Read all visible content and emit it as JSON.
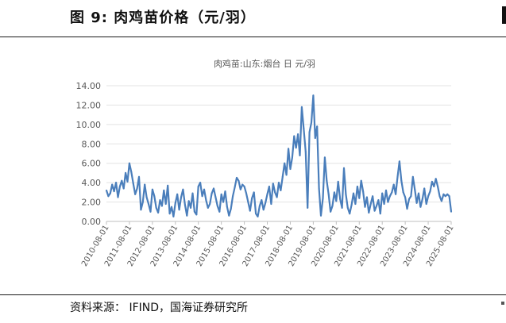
{
  "figure": {
    "title": "图 9:  肉鸡苗价格（元/羽）",
    "source": "资料来源：  IFIND，国海证券研究所"
  },
  "chart_data": {
    "type": "line",
    "title": "肉鸡苗:山东:烟台  日  元/羽",
    "ylim": [
      0,
      14
    ],
    "yticks": [
      "0.00",
      "2.00",
      "4.00",
      "6.00",
      "8.00",
      "10.00",
      "12.00",
      "14.00"
    ],
    "xticks": [
      "2010-08-01",
      "2011-08-01",
      "2012-08-01",
      "2013-08-01",
      "2014-08-01",
      "2015-08-01",
      "2016-08-01",
      "2017-08-01",
      "2018-08-01",
      "2019-08-01",
      "2020-08-01",
      "2021-08-01",
      "2022-08-01",
      "2023-08-01",
      "2024-08-01",
      "2025-08-01"
    ],
    "grid": true,
    "legend": "none",
    "series": [
      {
        "color": "#4a7ebb",
        "x": [
          "2010-08",
          "2010-09",
          "2010-10",
          "2010-11",
          "2010-12",
          "2011-01",
          "2011-02",
          "2011-03",
          "2011-04",
          "2011-05",
          "2011-06",
          "2011-07",
          "2011-08",
          "2011-09",
          "2011-10",
          "2011-11",
          "2011-12",
          "2012-01",
          "2012-02",
          "2012-03",
          "2012-04",
          "2012-05",
          "2012-06",
          "2012-07",
          "2012-08",
          "2012-09",
          "2012-10",
          "2012-11",
          "2012-12",
          "2013-01",
          "2013-02",
          "2013-03",
          "2013-04",
          "2013-05",
          "2013-06",
          "2013-07",
          "2013-08",
          "2013-09",
          "2013-10",
          "2013-11",
          "2013-12",
          "2014-01",
          "2014-02",
          "2014-03",
          "2014-04",
          "2014-05",
          "2014-06",
          "2014-07",
          "2014-08",
          "2014-09",
          "2014-10",
          "2014-11",
          "2014-12",
          "2015-01",
          "2015-02",
          "2015-03",
          "2015-04",
          "2015-05",
          "2015-06",
          "2015-07",
          "2015-08",
          "2015-09",
          "2015-10",
          "2015-11",
          "2015-12",
          "2016-01",
          "2016-02",
          "2016-03",
          "2016-04",
          "2016-05",
          "2016-06",
          "2016-07",
          "2016-08",
          "2016-09",
          "2016-10",
          "2016-11",
          "2016-12",
          "2017-01",
          "2017-02",
          "2017-03",
          "2017-04",
          "2017-05",
          "2017-06",
          "2017-07",
          "2017-08",
          "2017-09",
          "2017-10",
          "2017-11",
          "2017-12",
          "2018-01",
          "2018-02",
          "2018-03",
          "2018-04",
          "2018-05",
          "2018-06",
          "2018-07",
          "2018-08",
          "2018-09",
          "2018-10",
          "2018-11",
          "2018-12",
          "2019-01",
          "2019-02",
          "2019-03",
          "2019-04",
          "2019-05",
          "2019-06",
          "2019-07",
          "2019-08",
          "2019-09",
          "2019-10",
          "2019-11",
          "2019-12",
          "2020-01",
          "2020-02",
          "2020-03",
          "2020-04",
          "2020-05",
          "2020-06",
          "2020-07",
          "2020-08",
          "2020-09",
          "2020-10",
          "2020-11",
          "2020-12",
          "2021-01",
          "2021-02",
          "2021-03",
          "2021-04",
          "2021-05",
          "2021-06",
          "2021-07",
          "2021-08",
          "2021-09",
          "2021-10",
          "2021-11",
          "2021-12",
          "2022-01",
          "2022-02",
          "2022-03",
          "2022-04",
          "2022-05",
          "2022-06",
          "2022-07",
          "2022-08",
          "2022-09",
          "2022-10",
          "2022-11",
          "2022-12",
          "2023-01",
          "2023-02",
          "2023-03",
          "2023-04",
          "2023-05",
          "2023-06",
          "2023-07",
          "2023-08",
          "2023-09",
          "2023-10",
          "2023-11",
          "2023-12",
          "2024-01",
          "2024-02",
          "2024-03",
          "2024-04",
          "2024-05",
          "2024-06",
          "2024-07",
          "2024-08",
          "2024-09",
          "2024-10",
          "2024-11",
          "2024-12",
          "2025-01",
          "2025-02",
          "2025-03",
          "2025-04",
          "2025-05",
          "2025-06",
          "2025-07",
          "2025-08"
        ],
        "values": [
          3.2,
          2.6,
          2.9,
          3.8,
          3.1,
          4.0,
          2.5,
          3.6,
          4.2,
          3.4,
          5.0,
          4.1,
          6.0,
          5.1,
          3.9,
          2.8,
          3.4,
          4.6,
          1.2,
          2.0,
          3.8,
          2.5,
          1.8,
          1.0,
          3.3,
          2.6,
          1.4,
          0.9,
          2.2,
          1.6,
          3.2,
          1.8,
          3.7,
          0.8,
          1.5,
          0.5,
          1.9,
          2.8,
          1.2,
          2.5,
          3.3,
          1.7,
          0.6,
          2.1,
          1.4,
          2.9,
          1.0,
          0.7,
          3.6,
          4.0,
          2.6,
          3.3,
          2.2,
          1.4,
          1.8,
          2.9,
          3.4,
          2.5,
          1.6,
          1.0,
          2.8,
          2.0,
          3.1,
          1.5,
          0.6,
          1.3,
          2.6,
          3.5,
          4.5,
          4.2,
          3.3,
          3.8,
          3.6,
          2.9,
          2.0,
          1.1,
          2.4,
          3.0,
          0.8,
          0.5,
          1.6,
          2.2,
          1.2,
          1.9,
          2.8,
          3.6,
          1.8,
          3.9,
          3.0,
          2.5,
          4.0,
          3.2,
          4.6,
          6.0,
          4.8,
          7.5,
          5.4,
          6.6,
          8.8,
          7.6,
          9.0,
          6.8,
          11.8,
          9.6,
          7.2,
          1.4,
          9.2,
          10.2,
          13.0,
          8.6,
          9.8,
          3.4,
          0.6,
          2.4,
          6.6,
          4.2,
          2.8,
          1.0,
          1.6,
          3.0,
          2.1,
          4.1,
          2.3,
          1.4,
          5.5,
          2.8,
          1.4,
          0.8,
          1.7,
          2.9,
          1.8,
          3.6,
          2.4,
          4.2,
          3.1,
          1.5,
          2.5,
          0.9,
          1.8,
          2.6,
          1.1,
          1.6,
          2.2,
          0.8,
          2.9,
          1.8,
          3.2,
          2.0,
          2.6,
          3.0,
          3.8,
          2.8,
          4.6,
          6.2,
          4.2,
          3.0,
          2.5,
          1.3,
          2.3,
          2.6,
          4.6,
          3.3,
          1.9,
          2.9,
          1.5,
          2.3,
          3.4,
          1.8,
          2.6,
          3.1,
          4.1,
          3.6,
          4.4,
          3.6,
          2.6,
          2.1,
          2.8,
          2.6,
          2.8,
          2.6,
          1.0
        ]
      }
    ]
  }
}
